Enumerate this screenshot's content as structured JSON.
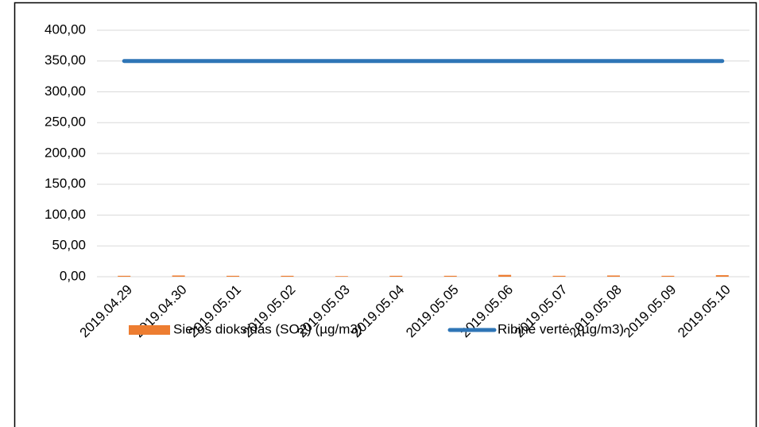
{
  "chart_data": {
    "type": "combo",
    "categories": [
      "2019.04.29",
      "2019.04.30",
      "2019.05.01",
      "2019.05.02",
      "2019.05.03",
      "2019.05.04",
      "2019.05.05",
      "2019.05.06",
      "2019.05.07",
      "2019.05.08",
      "2019.05.09",
      "2019.05.10"
    ],
    "series": [
      {
        "name": "Sieros dioksidas (SO2) (µg/m3)",
        "type": "bar",
        "color": "#ed7d31",
        "values": [
          1.5,
          2,
          1.5,
          1.5,
          1,
          1.5,
          1.5,
          3,
          1.5,
          2,
          1.5,
          2.5
        ]
      },
      {
        "name": "Ribinė vertė, (µg/m3)",
        "type": "line",
        "color": "#2e75b6",
        "values": [
          350,
          350,
          350,
          350,
          350,
          350,
          350,
          350,
          350,
          350,
          350,
          350
        ]
      }
    ],
    "ylim": [
      0,
      400
    ],
    "yticks": [
      {
        "value": 0,
        "label": "0,00"
      },
      {
        "value": 50,
        "label": "50,00"
      },
      {
        "value": 100,
        "label": "100,00"
      },
      {
        "value": 150,
        "label": "150,00"
      },
      {
        "value": 200,
        "label": "200,00"
      },
      {
        "value": 250,
        "label": "250,00"
      },
      {
        "value": 300,
        "label": "300,00"
      },
      {
        "value": 350,
        "label": "350,00"
      },
      {
        "value": 400,
        "label": "400,00"
      }
    ],
    "grid": true,
    "legend": "bottom"
  }
}
